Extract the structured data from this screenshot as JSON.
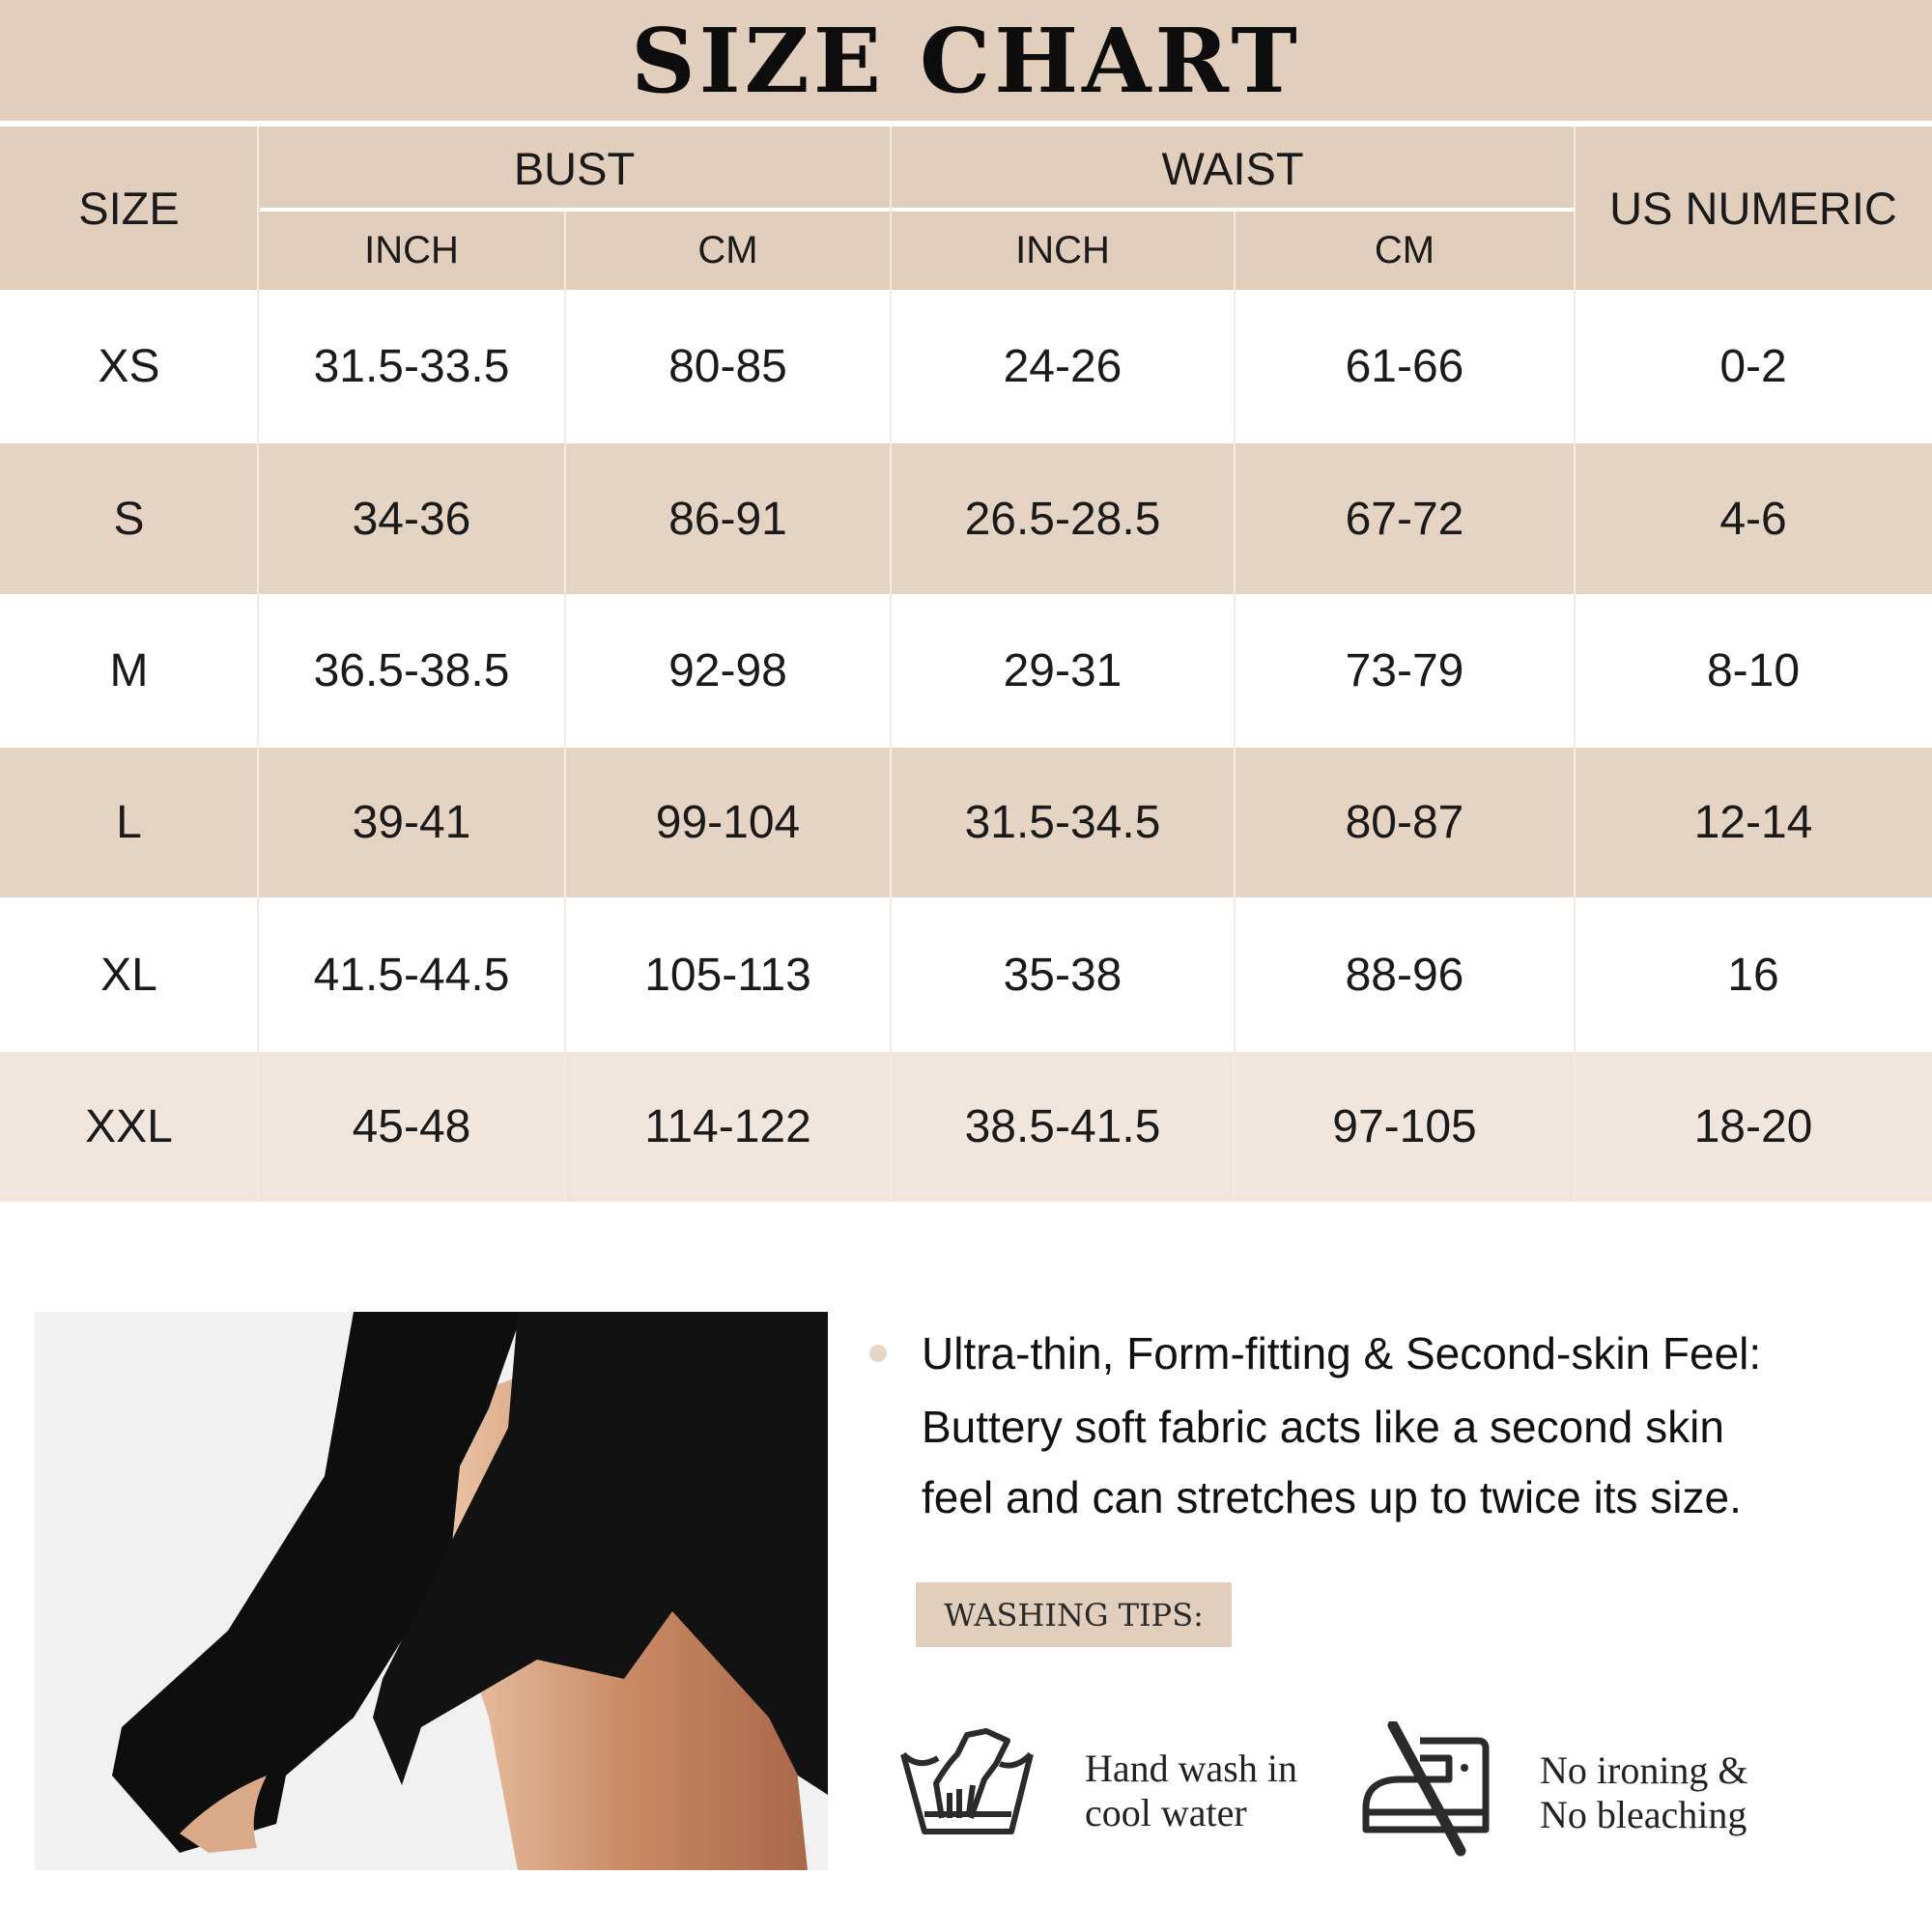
{
  "title": "SIZE CHART",
  "table": {
    "headers": {
      "size": "SIZE",
      "bust": "BUST",
      "waist": "WAIST",
      "us_numeric": "US NUMERIC",
      "bust_inch": "INCH",
      "bust_cm": "CM",
      "waist_inch": "INCH",
      "waist_cm": "CM"
    },
    "rows": [
      {
        "size": "XS",
        "bust_inch": "31.5-33.5",
        "bust_cm": "80-85",
        "waist_inch": "24-26",
        "waist_cm": "61-66",
        "us": "0-2"
      },
      {
        "size": "S",
        "bust_inch": "34-36",
        "bust_cm": "86-91",
        "waist_inch": "26.5-28.5",
        "waist_cm": "67-72",
        "us": "4-6"
      },
      {
        "size": "M",
        "bust_inch": "36.5-38.5",
        "bust_cm": "92-98",
        "waist_inch": "29-31",
        "waist_cm": "73-79",
        "us": "8-10"
      },
      {
        "size": "L",
        "bust_inch": "39-41",
        "bust_cm": "99-104",
        "waist_inch": "31.5-34.5",
        "waist_cm": "80-87",
        "us": "12-14"
      },
      {
        "size": "XL",
        "bust_inch": "41.5-44.5",
        "bust_cm": "105-113",
        "waist_inch": "35-38",
        "waist_cm": "88-96",
        "us": "16"
      },
      {
        "size": "XXL",
        "bust_inch": "45-48",
        "bust_cm": "114-122",
        "waist_inch": "38.5-41.5",
        "waist_cm": "97-105",
        "us": "18-20"
      }
    ]
  },
  "feature": {
    "lines": [
      "Ultra-thin, Form-fitting & Second-skin Feel:",
      "Buttery soft fabric acts like a second skin",
      "feel and can stretches up to twice its size."
    ]
  },
  "washing": {
    "label": "WASHING TIPS:",
    "items": [
      {
        "icon": "hand-wash-icon",
        "line1": "Hand wash in",
        "line2": "cool water"
      },
      {
        "icon": "no-iron-icon",
        "line1": "No ironing &",
        "line2": "No bleaching"
      }
    ]
  },
  "colors": {
    "accent": "#e2cebd",
    "row_alt": "#e5d3c3",
    "row_last": "#f1e6dd"
  }
}
